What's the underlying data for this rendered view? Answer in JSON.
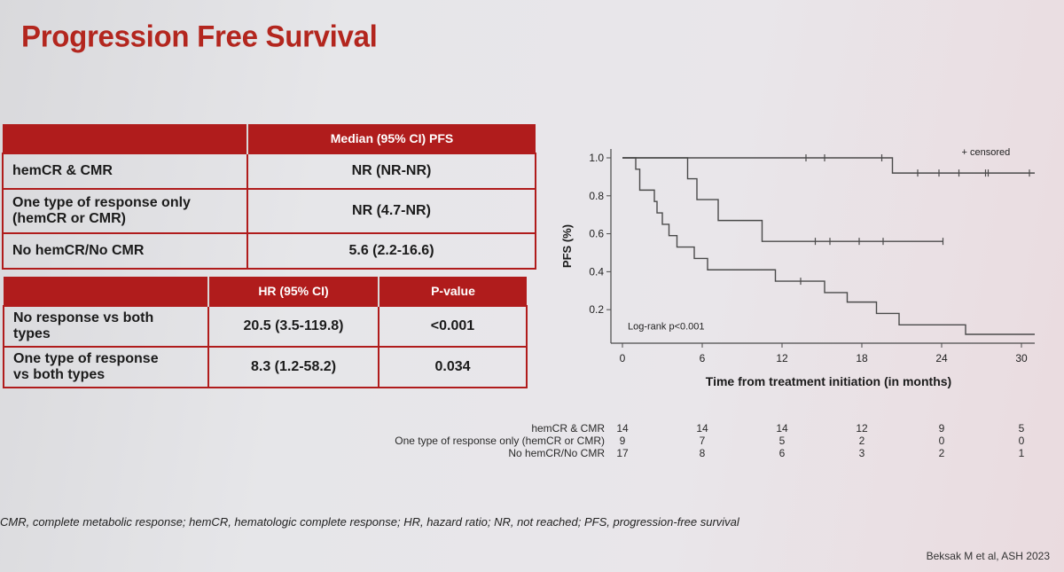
{
  "title": "Progression Free Survival",
  "table1": {
    "header": [
      "",
      "Median  (95% CI) PFS"
    ],
    "rows": [
      {
        "label": "hemCR & CMR",
        "value": "NR (NR-NR)"
      },
      {
        "label_line1": "One type of response only",
        "label_line2": "(hemCR or CMR)",
        "value": "NR (4.7-NR)"
      },
      {
        "label": "No hemCR/No CMR",
        "value": "5.6 (2.2-16.6)"
      }
    ]
  },
  "table2": {
    "header": [
      "",
      "HR (95% CI)",
      "P-value"
    ],
    "rows": [
      {
        "label_line1": "No response vs both",
        "label_line2": "types",
        "hr": "20.5 (3.5-119.8)",
        "p": "<0.001"
      },
      {
        "label_line1": "One type of response",
        "label_line2": "vs both types",
        "hr": "8.3 (1.2-58.2)",
        "p": "0.034"
      }
    ]
  },
  "chart_data": {
    "type": "line",
    "step": true,
    "title": "",
    "xlabel": "Time from treatment initiation (in months)",
    "ylabel": "PFS (%)",
    "xlim": [
      0,
      31
    ],
    "ylim": [
      0.07,
      1.0
    ],
    "xticks": [
      0,
      6,
      12,
      18,
      24,
      30
    ],
    "yticks": [
      0.2,
      0.4,
      0.6,
      0.8,
      1.0
    ],
    "yticklabels": [
      "0.2",
      "0.4",
      "0.6",
      "0.8",
      "1.0"
    ],
    "legend_text": "+ censored",
    "annotation": "Log-rank p<0.001",
    "series": [
      {
        "steps": [
          [
            0,
            1.0
          ],
          [
            20.3,
            0.92
          ],
          [
            31,
            0.92
          ]
        ],
        "censored": [
          [
            13.8,
            1.0
          ],
          [
            15.2,
            1.0
          ],
          [
            19.5,
            1.0
          ],
          [
            22.2,
            0.92
          ],
          [
            23.8,
            0.92
          ],
          [
            25.3,
            0.92
          ],
          [
            27.3,
            0.92
          ],
          [
            27.5,
            0.92
          ],
          [
            30.6,
            0.92
          ]
        ]
      },
      {
        "steps": [
          [
            0,
            1.0
          ],
          [
            4.9,
            0.89
          ],
          [
            5.6,
            0.78
          ],
          [
            7.2,
            0.67
          ],
          [
            10.5,
            0.56
          ],
          [
            24.1,
            0.56
          ]
        ],
        "censored": [
          [
            14.5,
            0.56
          ],
          [
            15.6,
            0.56
          ],
          [
            17.8,
            0.56
          ],
          [
            19.6,
            0.56
          ],
          [
            24.1,
            0.56
          ]
        ]
      },
      {
        "steps": [
          [
            0,
            1.0
          ],
          [
            1.0,
            0.94
          ],
          [
            1.3,
            0.83
          ],
          [
            2.4,
            0.77
          ],
          [
            2.6,
            0.71
          ],
          [
            3.0,
            0.65
          ],
          [
            3.5,
            0.59
          ],
          [
            4.1,
            0.53
          ],
          [
            5.4,
            0.47
          ],
          [
            6.4,
            0.41
          ],
          [
            11.5,
            0.35
          ],
          [
            15.2,
            0.29
          ],
          [
            16.9,
            0.24
          ],
          [
            19.1,
            0.18
          ],
          [
            20.8,
            0.12
          ],
          [
            25.8,
            0.07
          ],
          [
            31,
            0.07
          ]
        ],
        "censored": [
          [
            13.4,
            0.35
          ]
        ]
      }
    ]
  },
  "risk_table": {
    "times": [
      0,
      6,
      12,
      18,
      24,
      30
    ],
    "rows": [
      {
        "label": "hemCR & CMR",
        "values": [
          "14",
          "14",
          "14",
          "12",
          "9",
          "5"
        ]
      },
      {
        "label": "One type of response only (hemCR or CMR)",
        "values": [
          "9",
          "7",
          "5",
          "2",
          "0",
          "0"
        ]
      },
      {
        "label": "No hemCR/No CMR",
        "values": [
          "17",
          "8",
          "6",
          "3",
          "2",
          "1"
        ]
      }
    ]
  },
  "footnote": "CMR, complete metabolic response; hemCR, hematologic complete response; HR, hazard ratio; NR, not reached; PFS, progression-free survival",
  "citation": "Beksak M et al, ASH 2023"
}
